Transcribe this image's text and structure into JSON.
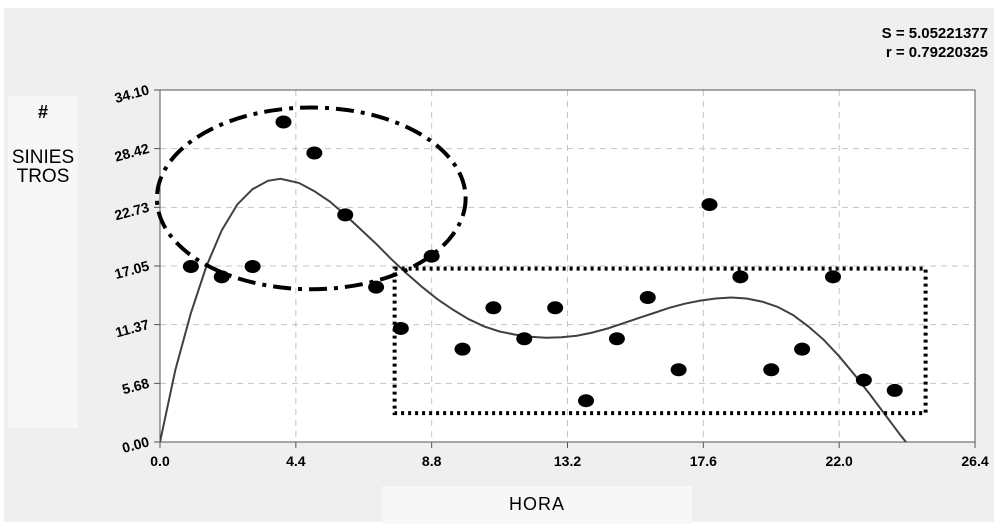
{
  "stats": {
    "s_label": "S = 5.05221377",
    "r_label": "r = 0.79220325"
  },
  "chart_data": {
    "type": "scatter",
    "xlabel": "HORA",
    "ylabel_hash": "#",
    "ylabel": "SINIESTROS",
    "xlim": [
      0.0,
      26.4
    ],
    "ylim": [
      0.0,
      34.1
    ],
    "x_ticks": [
      "0.0",
      "4.4",
      "8.8",
      "13.2",
      "17.6",
      "22.0",
      "26.4"
    ],
    "y_ticks": [
      "0.00",
      "5.68",
      "11.37",
      "17.05",
      "22.73",
      "28.42",
      "34.10"
    ],
    "grid": true,
    "points": [
      {
        "x": 1,
        "y": 17
      },
      {
        "x": 2,
        "y": 16
      },
      {
        "x": 3,
        "y": 17
      },
      {
        "x": 4,
        "y": 31
      },
      {
        "x": 5,
        "y": 28
      },
      {
        "x": 6,
        "y": 22
      },
      {
        "x": 7,
        "y": 15
      },
      {
        "x": 7.8,
        "y": 11
      },
      {
        "x": 8.8,
        "y": 18
      },
      {
        "x": 9.8,
        "y": 9
      },
      {
        "x": 10.8,
        "y": 13
      },
      {
        "x": 11.8,
        "y": 10
      },
      {
        "x": 12.8,
        "y": 13
      },
      {
        "x": 13.8,
        "y": 4
      },
      {
        "x": 14.8,
        "y": 10
      },
      {
        "x": 15.8,
        "y": 14
      },
      {
        "x": 16.8,
        "y": 7
      },
      {
        "x": 17.8,
        "y": 23
      },
      {
        "x": 18.8,
        "y": 16
      },
      {
        "x": 19.8,
        "y": 7
      },
      {
        "x": 20.8,
        "y": 9
      },
      {
        "x": 21.8,
        "y": 16
      },
      {
        "x": 22.8,
        "y": 6
      },
      {
        "x": 23.8,
        "y": 5
      }
    ],
    "fit_curve": [
      [
        0,
        0
      ],
      [
        0.5,
        7
      ],
      [
        1,
        12.5
      ],
      [
        1.5,
        17
      ],
      [
        2,
        20.5
      ],
      [
        2.5,
        23
      ],
      [
        3,
        24.5
      ],
      [
        3.5,
        25.3
      ],
      [
        3.9,
        25.5
      ],
      [
        4.5,
        25.1
      ],
      [
        5,
        24.3
      ],
      [
        5.5,
        23.3
      ],
      [
        6,
        22
      ],
      [
        6.5,
        20.6
      ],
      [
        7,
        19.2
      ],
      [
        7.5,
        17.7
      ],
      [
        8,
        16.3
      ],
      [
        8.5,
        15
      ],
      [
        9,
        13.8
      ],
      [
        9.5,
        12.8
      ],
      [
        10,
        11.9
      ],
      [
        10.5,
        11.2
      ],
      [
        11,
        10.7
      ],
      [
        11.5,
        10.4
      ],
      [
        12,
        10.2
      ],
      [
        12.5,
        10.1
      ],
      [
        13,
        10.15
      ],
      [
        13.5,
        10.3
      ],
      [
        14,
        10.6
      ],
      [
        14.5,
        11
      ],
      [
        15,
        11.5
      ],
      [
        15.5,
        12
      ],
      [
        16,
        12.5
      ],
      [
        16.5,
        13.0
      ],
      [
        17,
        13.4
      ],
      [
        17.5,
        13.7
      ],
      [
        18,
        13.9
      ],
      [
        18.5,
        14.0
      ],
      [
        19,
        13.9
      ],
      [
        19.5,
        13.6
      ],
      [
        20,
        13.1
      ],
      [
        20.5,
        12.3
      ],
      [
        21,
        11.2
      ],
      [
        21.5,
        9.9
      ],
      [
        22,
        8.3
      ],
      [
        22.5,
        6.5
      ],
      [
        23,
        4.6
      ],
      [
        23.5,
        2.6
      ],
      [
        24,
        0.6
      ],
      [
        24.3,
        -0.5
      ]
    ],
    "annotations": [
      {
        "shape": "dash-dot-ellipse",
        "cx": 4.9,
        "cy": 23.6,
        "rx": 5.0,
        "ry": 8.8
      },
      {
        "shape": "dotted-rectangle",
        "x0": 7.6,
        "x1": 24.8,
        "y0": 2.8,
        "y1": 16.8
      }
    ]
  }
}
